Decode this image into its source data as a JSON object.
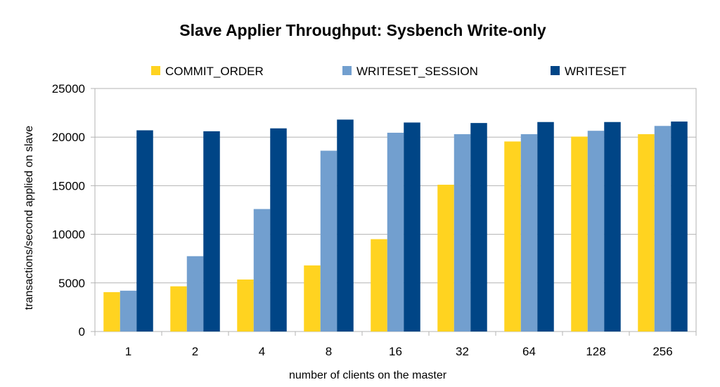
{
  "chart_data": {
    "type": "bar",
    "title": "Slave Applier Throughput: Sysbench Write-only",
    "xlabel": "number of clients on the master",
    "ylabel": "transactions/second applied on slave",
    "ylim": [
      0,
      25000
    ],
    "yticks": [
      0,
      5000,
      10000,
      15000,
      20000,
      25000
    ],
    "grid": true,
    "legend_position": "top",
    "categories": [
      "1",
      "2",
      "4",
      "8",
      "16",
      "32",
      "64",
      "128",
      "256"
    ],
    "series": [
      {
        "name": "COMMIT_ORDER",
        "color": "#ffd320",
        "values": [
          4050,
          4650,
          5350,
          6800,
          9500,
          15100,
          19550,
          20050,
          20300
        ]
      },
      {
        "name": "WRITESET_SESSION",
        "color": "#729fcf",
        "values": [
          4200,
          7750,
          12600,
          18600,
          20450,
          20300,
          20300,
          20650,
          21150
        ]
      },
      {
        "name": "WRITESET",
        "color": "#004586",
        "values": [
          20700,
          20600,
          20900,
          21800,
          21500,
          21450,
          21550,
          21550,
          21600
        ]
      }
    ]
  }
}
